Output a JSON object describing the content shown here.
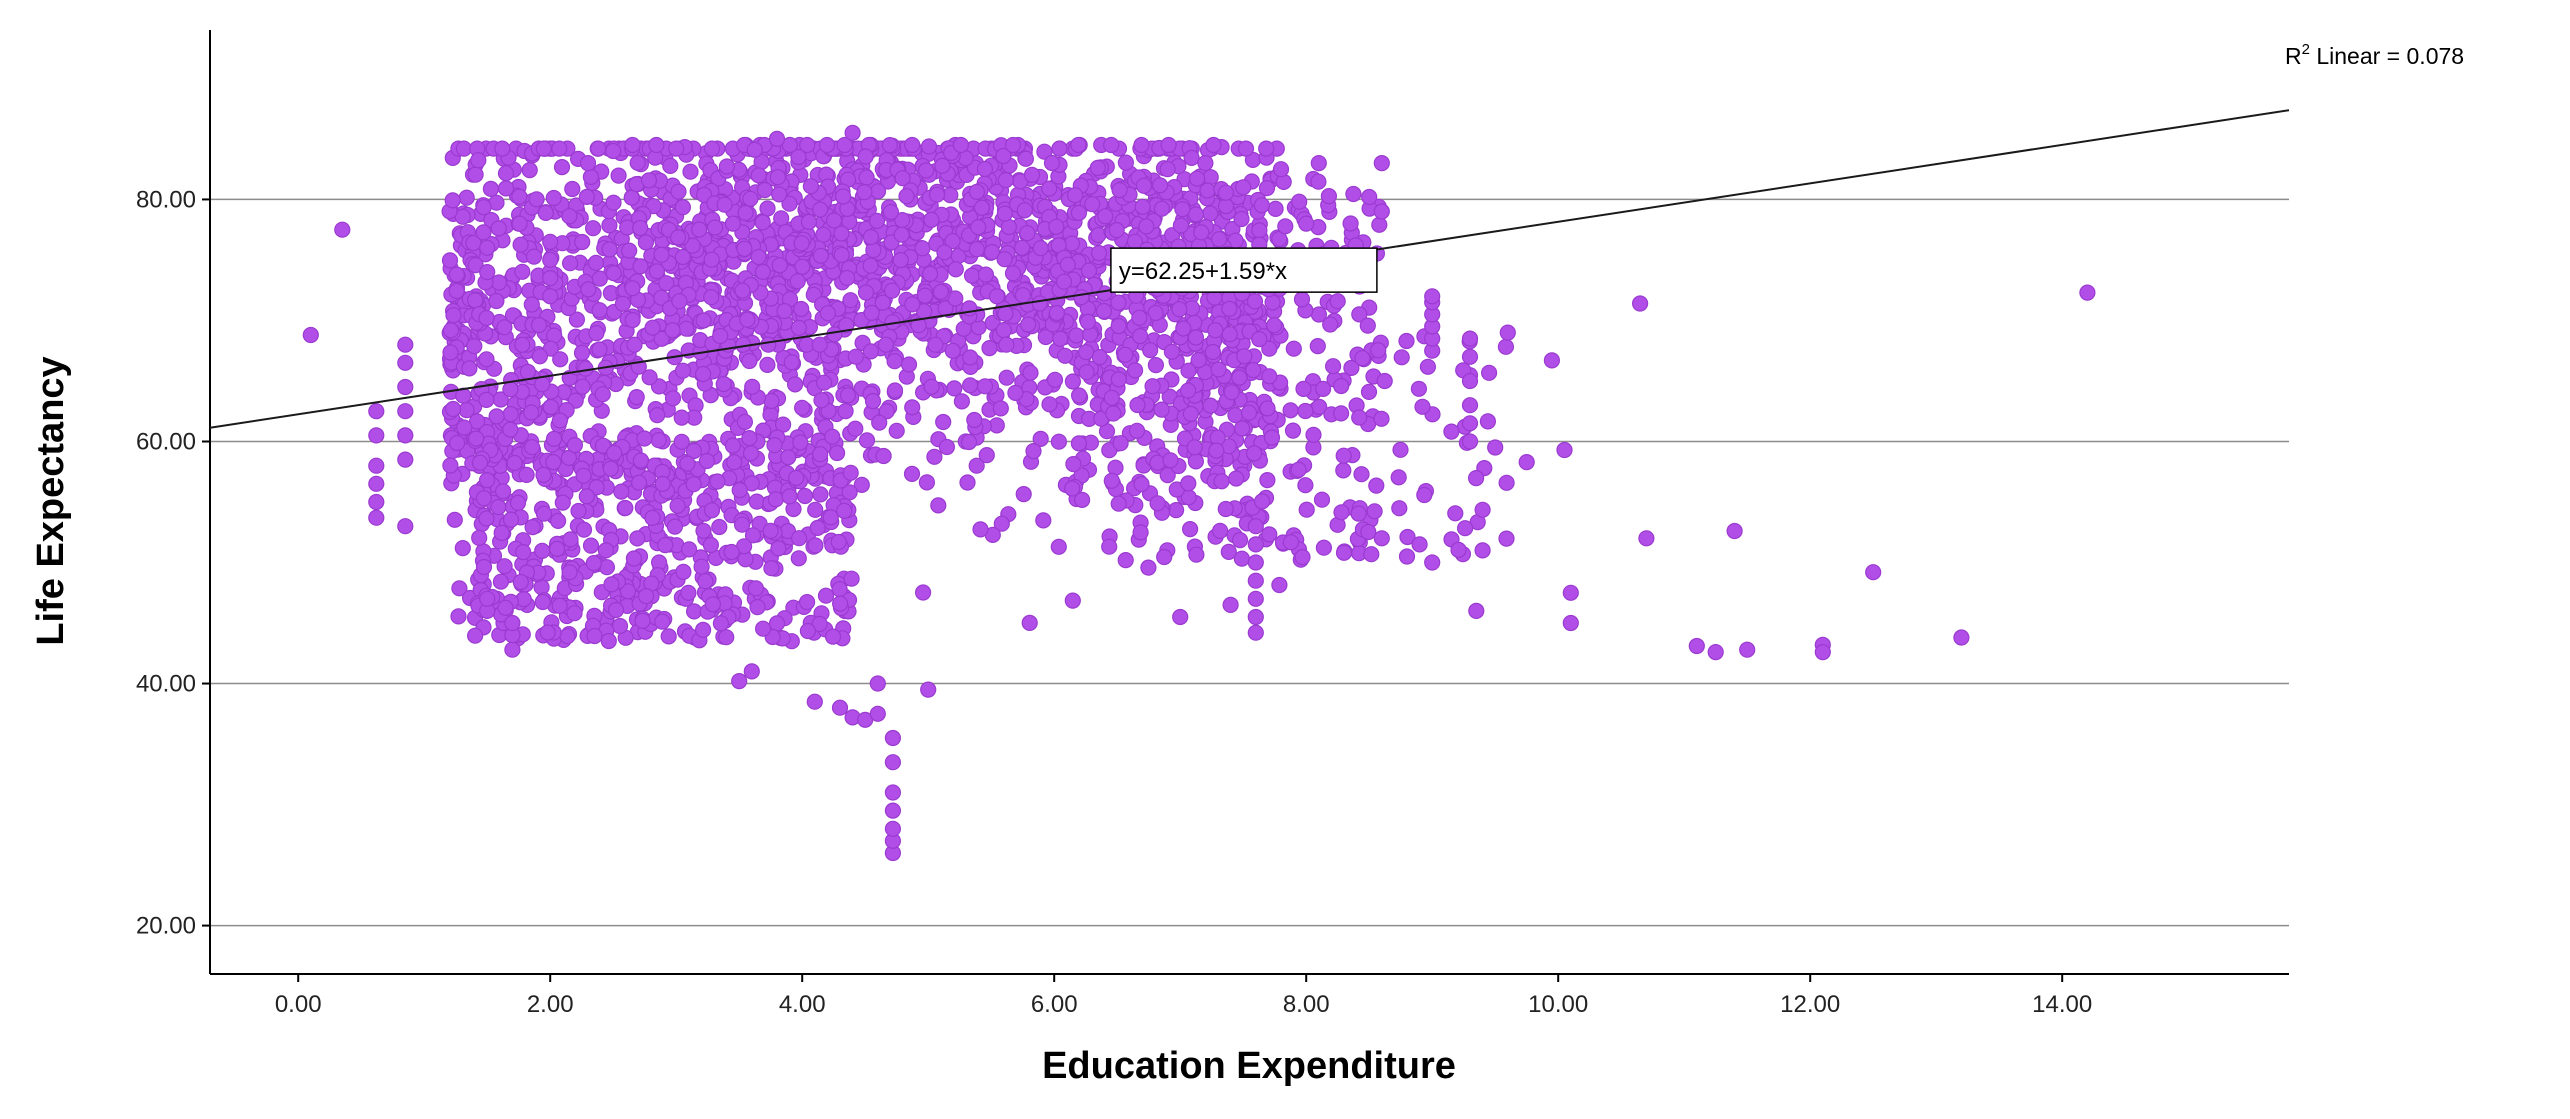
{
  "chart_data": {
    "type": "scatter",
    "title": "",
    "xlabel": "Education Expenditure",
    "ylabel": "Life Expectancy",
    "xlim": [
      -0.7,
      15.8
    ],
    "ylim": [
      16.0,
      94.0
    ],
    "x_ticks": [
      "0.00",
      "2.00",
      "4.00",
      "6.00",
      "8.00",
      "10.00",
      "12.00",
      "14.00"
    ],
    "y_ticks": [
      "20.00",
      "40.00",
      "60.00",
      "80.00"
    ],
    "grid": "horizontal",
    "point_color": "#b24ee8",
    "point_edge_color": "#9a3ad0",
    "fit": {
      "intercept": 62.25,
      "slope": 1.59,
      "label": "y=62.25+1.59*x"
    },
    "r2_prefix": "R",
    "r2_sup": "2",
    "r2_suffix": " Linear = 0.078",
    "series": [
      {
        "values": [
          [
            0.1,
            68.8
          ],
          [
            0.35,
            77.5
          ],
          [
            0.62,
            53.7
          ],
          [
            0.62,
            55.0
          ],
          [
            0.62,
            56.5
          ],
          [
            0.62,
            58.0
          ],
          [
            0.62,
            60.5
          ],
          [
            0.62,
            62.5
          ],
          [
            0.85,
            58.5
          ],
          [
            0.85,
            60.5
          ],
          [
            0.85,
            62.5
          ],
          [
            0.85,
            64.5
          ],
          [
            0.85,
            66.5
          ],
          [
            0.85,
            68.0
          ],
          [
            0.85,
            53.0
          ],
          [
            1.5,
            46.0
          ],
          [
            1.5,
            47.0
          ],
          [
            1.5,
            74.0
          ],
          [
            1.5,
            76.0
          ],
          [
            1.7,
            42.8
          ],
          [
            1.7,
            44.0
          ],
          [
            1.7,
            45.0
          ],
          [
            2.0,
            72.0
          ],
          [
            2.0,
            73.5
          ],
          [
            2.0,
            75.0
          ],
          [
            2.0,
            76.5
          ],
          [
            4.1,
            38.5
          ],
          [
            4.3,
            38.0
          ],
          [
            4.4,
            37.2
          ],
          [
            4.5,
            37.0
          ],
          [
            4.6,
            37.5
          ],
          [
            4.72,
            26.0
          ],
          [
            4.72,
            27.0
          ],
          [
            4.72,
            28.0
          ],
          [
            4.72,
            29.5
          ],
          [
            4.72,
            31.0
          ],
          [
            4.72,
            33.5
          ],
          [
            4.72,
            35.5
          ],
          [
            4.6,
            40.0
          ],
          [
            5.0,
            39.5
          ],
          [
            3.5,
            40.2
          ],
          [
            3.6,
            41.0
          ],
          [
            4.4,
            85.5
          ],
          [
            3.8,
            85.0
          ],
          [
            3.0,
            84.2
          ],
          [
            2.5,
            84.0
          ],
          [
            2.3,
            83.0
          ],
          [
            7.6,
            44.2
          ],
          [
            7.6,
            45.5
          ],
          [
            7.6,
            47.0
          ],
          [
            7.6,
            48.5
          ],
          [
            7.6,
            50.0
          ],
          [
            7.6,
            51.5
          ],
          [
            7.6,
            53.0
          ],
          [
            7.0,
            45.5
          ],
          [
            7.4,
            46.5
          ],
          [
            8.3,
            50.8
          ],
          [
            8.6,
            52.0
          ],
          [
            8.8,
            50.5
          ],
          [
            9.0,
            50.0
          ],
          [
            8.9,
            51.5
          ],
          [
            9.0,
            67.5
          ],
          [
            9.0,
            68.5
          ],
          [
            9.0,
            69.5
          ],
          [
            9.0,
            70.5
          ],
          [
            9.0,
            71.5
          ],
          [
            9.0,
            72.0
          ],
          [
            9.3,
            60.0
          ],
          [
            9.3,
            61.5
          ],
          [
            9.3,
            63.0
          ],
          [
            9.3,
            65.0
          ],
          [
            9.3,
            67.0
          ],
          [
            9.3,
            68.5
          ],
          [
            9.35,
            46.0
          ],
          [
            9.4,
            51.0
          ],
          [
            9.5,
            59.5
          ],
          [
            9.6,
            69.0
          ],
          [
            9.75,
            58.3
          ],
          [
            9.95,
            66.7
          ],
          [
            10.05,
            59.3
          ],
          [
            10.1,
            47.5
          ],
          [
            10.1,
            45.0
          ],
          [
            10.65,
            71.4
          ],
          [
            10.7,
            52.0
          ],
          [
            11.1,
            43.1
          ],
          [
            11.25,
            42.6
          ],
          [
            11.4,
            52.6
          ],
          [
            11.5,
            42.8
          ],
          [
            12.1,
            43.2
          ],
          [
            12.1,
            42.6
          ],
          [
            12.5,
            49.2
          ],
          [
            13.2,
            43.8
          ],
          [
            14.2,
            72.3
          ],
          [
            8.1,
            83.0
          ],
          [
            8.6,
            83.0
          ],
          [
            8.5,
            80.2
          ],
          [
            8.6,
            79.0
          ],
          [
            8.2,
            76.0
          ],
          [
            8.4,
            74.5
          ],
          [
            8.0,
            78.0
          ],
          [
            7.8,
            82.5
          ],
          [
            7.5,
            81.0
          ],
          [
            7.2,
            83.0
          ],
          [
            6.9,
            82.5
          ]
        ]
      }
    ]
  }
}
